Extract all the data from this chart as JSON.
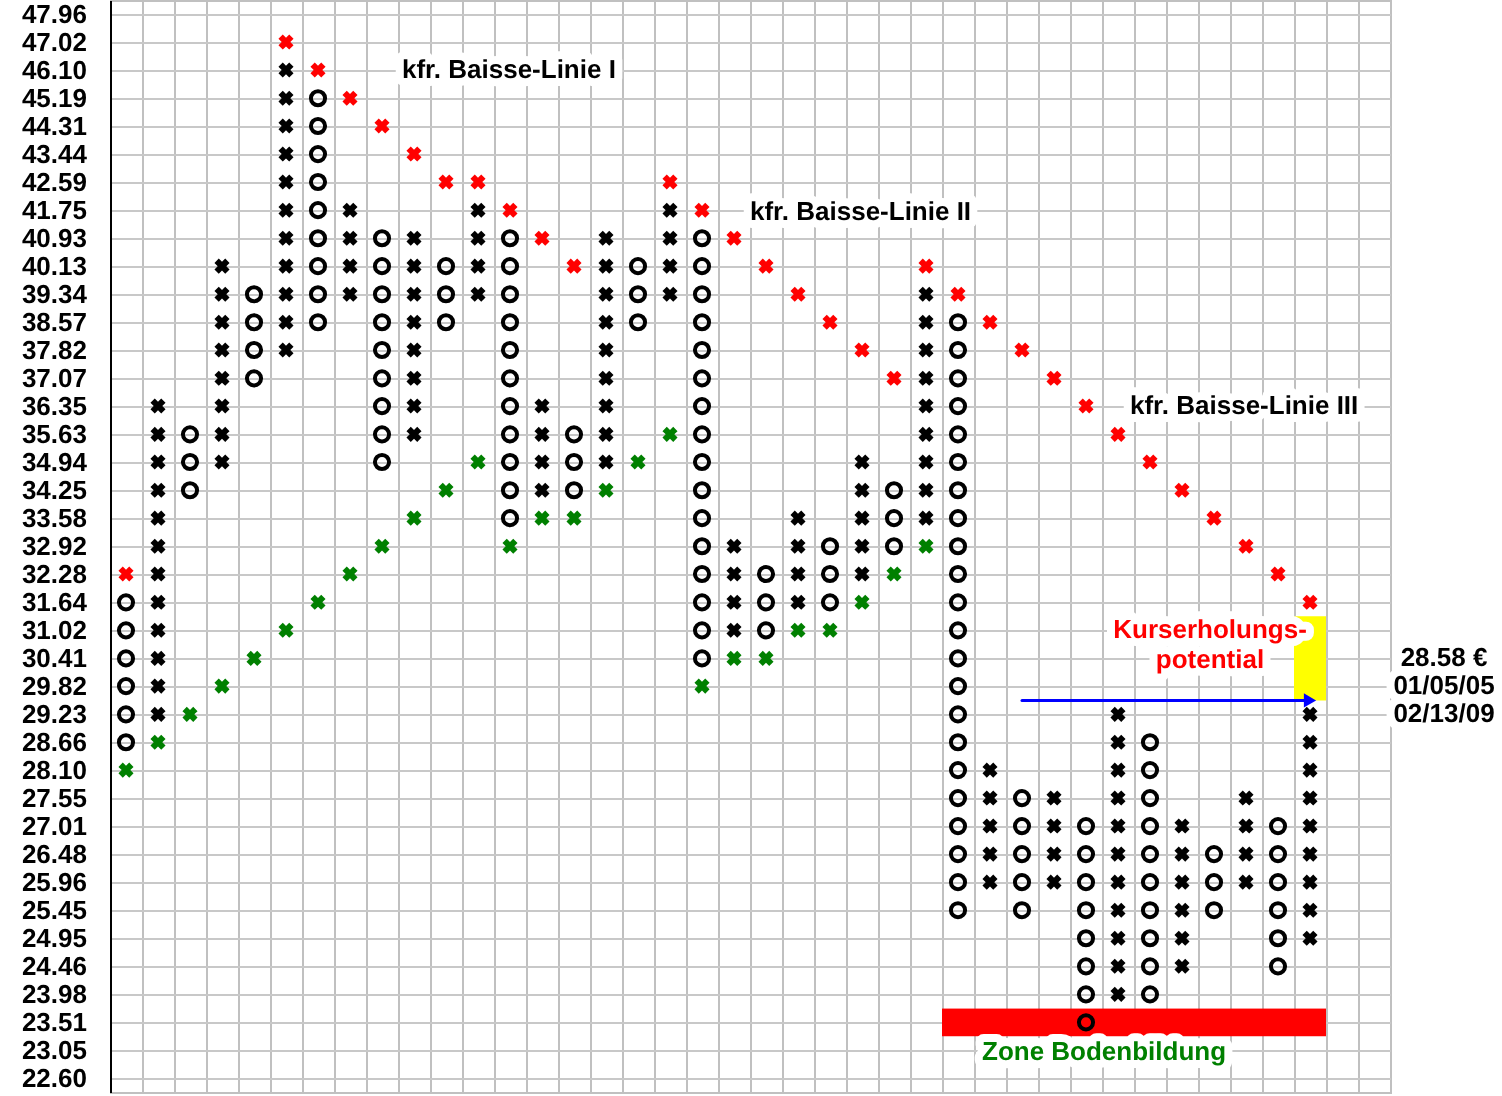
{
  "chart_data": {
    "type": "scatter",
    "categories": [
      null,
      null,
      null,
      null,
      null,
      null,
      null,
      null,
      null,
      null,
      null,
      null,
      null,
      null,
      null,
      null,
      null,
      null,
      null,
      null,
      null,
      null,
      null,
      null,
      null,
      null,
      null,
      null,
      null,
      null,
      null,
      null,
      null,
      null,
      null,
      null,
      null,
      null,
      null,
      null
    ],
    "ylim": [
      22.38,
      48.44
    ],
    "log": true,
    "grid": true,
    "tick_labels": "y",
    "yticks": [
      {
        "value": 22.6,
        "label": "22.60"
      },
      23.05,
      23.51,
      23.98,
      24.46,
      24.95,
      25.45,
      25.96,
      26.48,
      27.01,
      27.55,
      {
        "value": 28.1,
        "label": "28.10"
      },
      28.66,
      29.23,
      29.82,
      30.41,
      31.02,
      31.64,
      32.28,
      32.92,
      33.58,
      34.25,
      34.94,
      35.63,
      36.35,
      37.07,
      37.82,
      38.57,
      39.34,
      40.13,
      40.93,
      41.75,
      42.59,
      43.44,
      44.31,
      45.19,
      {
        "value": 46.1,
        "label": "46.10"
      },
      47.02,
      47.96
    ],
    "annotations": [
      "kfr. Baisse-Linie I",
      "kfr. Baisse-Linie II",
      "kfr. Baisse-Linie III",
      "Kurserholungs-\npotential",
      "28.58 €",
      "01/05/05",
      "02/13/09",
      "Zone Bodenbildung"
    ],
    "series": [
      {
        "type": "bar",
        "color": "#ffff00",
        "base": [
          null,
          null,
          null,
          null,
          null,
          null,
          null,
          null,
          null,
          null,
          null,
          null,
          null,
          null,
          null,
          null,
          null,
          null,
          null,
          null,
          null,
          null,
          null,
          null,
          null,
          null,
          null,
          null,
          null,
          null,
          null,
          null,
          null,
          null,
          null,
          null,
          null,
          29.52,
          null,
          null
        ],
        "values": [
          null,
          null,
          null,
          null,
          null,
          null,
          null,
          null,
          null,
          null,
          null,
          null,
          null,
          null,
          null,
          null,
          null,
          null,
          null,
          null,
          null,
          null,
          null,
          null,
          null,
          null,
          null,
          null,
          null,
          null,
          null,
          null,
          null,
          null,
          null,
          null,
          null,
          1.81,
          null,
          null
        ]
      },
      {
        "type": "bar",
        "color": "#ff0000",
        "base": [
          null,
          null,
          null,
          null,
          null,
          null,
          null,
          null,
          null,
          null,
          null,
          null,
          null,
          null,
          null,
          null,
          null,
          null,
          null,
          null,
          null,
          null,
          null,
          null,
          null,
          null,
          23.28,
          23.28,
          23.28,
          23.28,
          23.28,
          23.28,
          23.28,
          23.28,
          23.28,
          23.28,
          23.28,
          23.28,
          null,
          null
        ],
        "values": [
          null,
          null,
          null,
          null,
          null,
          null,
          null,
          null,
          null,
          null,
          null,
          null,
          null,
          null,
          null,
          null,
          null,
          null,
          null,
          null,
          null,
          null,
          null,
          null,
          null,
          null,
          0.46,
          0.46,
          0.46,
          0.46,
          0.46,
          0.46,
          0.46,
          0.46,
          0.46,
          0.46,
          0.46,
          0.46,
          null,
          null
        ]
      },
      {
        "type": "line",
        "color": "#0000ff",
        "values": [
          null,
          null,
          null,
          null,
          null,
          null,
          null,
          null,
          null,
          null,
          null,
          null,
          null,
          null,
          null,
          null,
          null,
          null,
          null,
          null,
          null,
          null,
          null,
          null,
          null,
          null,
          null,
          null,
          29.52,
          29.52,
          29.52,
          29.52,
          29.52,
          29.52,
          29.52,
          29.52,
          29.52,
          29.52,
          null,
          null
        ]
      },
      {
        "color": "#000000",
        "marker": "cross",
        "values": [
          null,
          29.23,
          null,
          34.94,
          null,
          37.82,
          null,
          39.34,
          null,
          35.63,
          null,
          39.34,
          null,
          34.25,
          null,
          34.94,
          null,
          39.34,
          null,
          31.02,
          null,
          31.64,
          null,
          32.28,
          null,
          33.58,
          null,
          25.96,
          null,
          25.96,
          null,
          23.98,
          null,
          24.46,
          null,
          25.96,
          null,
          24.95,
          null,
          null
        ]
      },
      {
        "color": "#000000",
        "marker": "cross",
        "values": [
          null,
          29.82,
          null,
          35.63,
          null,
          38.57,
          null,
          40.13,
          null,
          36.35,
          null,
          40.13,
          null,
          34.94,
          null,
          35.63,
          null,
          40.13,
          null,
          31.64,
          null,
          32.28,
          null,
          32.92,
          null,
          34.25,
          null,
          26.48,
          null,
          26.48,
          null,
          24.46,
          null,
          24.95,
          null,
          26.48,
          null,
          25.45,
          null,
          null
        ]
      },
      {
        "color": "#000000",
        "marker": "cross",
        "values": [
          null,
          30.41,
          null,
          36.35,
          null,
          39.34,
          null,
          40.93,
          null,
          37.07,
          null,
          40.93,
          null,
          35.63,
          null,
          36.35,
          null,
          40.93,
          null,
          32.28,
          null,
          32.92,
          null,
          33.58,
          null,
          34.94,
          null,
          27.01,
          null,
          27.01,
          null,
          24.95,
          null,
          25.45,
          null,
          27.01,
          null,
          25.96,
          null,
          null
        ]
      },
      {
        "color": "#000000",
        "marker": "cross",
        "values": [
          null,
          31.02,
          null,
          37.07,
          null,
          40.13,
          null,
          41.75,
          null,
          37.82,
          null,
          41.75,
          null,
          36.35,
          null,
          37.07,
          null,
          41.75,
          null,
          32.92,
          null,
          33.58,
          null,
          34.25,
          null,
          35.63,
          null,
          27.55,
          null,
          27.55,
          null,
          25.45,
          null,
          25.96,
          null,
          27.55,
          null,
          26.48,
          null,
          null
        ]
      },
      {
        "color": "#000000",
        "marker": "cross",
        "values": [
          null,
          31.64,
          null,
          37.82,
          null,
          40.93,
          null,
          null,
          null,
          38.57,
          null,
          null,
          null,
          null,
          null,
          37.82,
          null,
          null,
          null,
          null,
          null,
          null,
          null,
          34.94,
          null,
          36.35,
          null,
          28.1,
          null,
          null,
          null,
          25.96,
          null,
          26.48,
          null,
          null,
          null,
          27.01,
          null,
          null
        ]
      },
      {
        "color": "#000000",
        "marker": "cross",
        "values": [
          null,
          32.28,
          null,
          38.57,
          null,
          41.75,
          null,
          null,
          null,
          39.34,
          null,
          null,
          null,
          null,
          null,
          38.57,
          null,
          null,
          null,
          null,
          null,
          null,
          null,
          null,
          null,
          37.07,
          null,
          null,
          null,
          null,
          null,
          26.48,
          null,
          27.01,
          null,
          null,
          null,
          27.55,
          null,
          null
        ]
      },
      {
        "color": "#000000",
        "marker": "cross",
        "values": [
          null,
          32.92,
          null,
          39.34,
          null,
          42.59,
          null,
          null,
          null,
          40.13,
          null,
          null,
          null,
          null,
          null,
          39.34,
          null,
          null,
          null,
          null,
          null,
          null,
          null,
          null,
          null,
          37.82,
          null,
          null,
          null,
          null,
          null,
          27.01,
          null,
          null,
          null,
          null,
          null,
          28.1,
          null,
          null
        ]
      },
      {
        "color": "#000000",
        "marker": "cross",
        "values": [
          null,
          33.58,
          null,
          40.13,
          null,
          43.44,
          null,
          null,
          null,
          40.93,
          null,
          null,
          null,
          null,
          null,
          40.13,
          null,
          null,
          null,
          null,
          null,
          null,
          null,
          null,
          null,
          38.57,
          null,
          null,
          null,
          null,
          null,
          27.55,
          null,
          null,
          null,
          null,
          null,
          28.66,
          null,
          null
        ]
      },
      {
        "color": "#000000",
        "marker": "cross",
        "values": [
          null,
          34.25,
          null,
          null,
          null,
          44.31,
          null,
          null,
          null,
          null,
          null,
          null,
          null,
          null,
          null,
          40.93,
          null,
          null,
          null,
          null,
          null,
          null,
          null,
          null,
          null,
          39.34,
          null,
          null,
          null,
          null,
          null,
          28.1,
          null,
          null,
          null,
          null,
          null,
          29.23,
          null,
          null
        ]
      },
      {
        "color": "#000000",
        "marker": "cross",
        "values": [
          null,
          34.94,
          null,
          null,
          null,
          45.19,
          null,
          null,
          null,
          null,
          null,
          null,
          null,
          null,
          null,
          null,
          null,
          null,
          null,
          null,
          null,
          null,
          null,
          null,
          null,
          null,
          null,
          null,
          null,
          null,
          null,
          28.66,
          null,
          null,
          null,
          null,
          null,
          null,
          null,
          null
        ]
      },
      {
        "color": "#000000",
        "marker": "cross",
        "values": [
          null,
          35.63,
          null,
          null,
          null,
          46.1,
          null,
          null,
          null,
          null,
          null,
          null,
          null,
          null,
          null,
          null,
          null,
          null,
          null,
          null,
          null,
          null,
          null,
          null,
          null,
          null,
          null,
          null,
          null,
          null,
          null,
          29.23,
          null,
          null,
          null,
          null,
          null,
          null,
          null,
          null
        ]
      },
      {
        "color": "#000000",
        "marker": "cross",
        "values": [
          null,
          36.35,
          null,
          null,
          null,
          null,
          null,
          null,
          null,
          null,
          null,
          null,
          null,
          null,
          null,
          null,
          null,
          null,
          null,
          null,
          null,
          null,
          null,
          null,
          null,
          null,
          null,
          null,
          null,
          null,
          null,
          null,
          null,
          null,
          null,
          null,
          null,
          null,
          null,
          null
        ]
      },
      {
        "color": "#000000",
        "marker": "circle",
        "values": [
          28.66,
          null,
          34.25,
          null,
          37.07,
          null,
          38.57,
          null,
          34.94,
          null,
          38.57,
          null,
          33.58,
          null,
          34.25,
          null,
          38.57,
          null,
          30.41,
          null,
          31.02,
          null,
          31.64,
          null,
          32.92,
          null,
          25.45,
          null,
          25.45,
          null,
          23.51,
          null,
          23.98,
          null,
          25.45,
          null,
          24.46,
          null,
          null,
          null
        ]
      },
      {
        "color": "#000000",
        "marker": "circle",
        "values": [
          29.23,
          null,
          34.94,
          null,
          37.82,
          null,
          39.34,
          null,
          35.63,
          null,
          39.34,
          null,
          34.25,
          null,
          34.94,
          null,
          39.34,
          null,
          31.02,
          null,
          31.64,
          null,
          32.28,
          null,
          33.58,
          null,
          25.96,
          null,
          25.96,
          null,
          23.98,
          null,
          24.46,
          null,
          25.96,
          null,
          24.95,
          null,
          null,
          null
        ]
      },
      {
        "color": "#000000",
        "marker": "circle",
        "values": [
          29.82,
          null,
          35.63,
          null,
          38.57,
          null,
          40.13,
          null,
          36.35,
          null,
          40.13,
          null,
          34.94,
          null,
          35.63,
          null,
          40.13,
          null,
          31.64,
          null,
          32.28,
          null,
          32.92,
          null,
          34.25,
          null,
          26.48,
          null,
          26.48,
          null,
          24.46,
          null,
          24.95,
          null,
          26.48,
          null,
          25.45,
          null,
          null,
          null
        ]
      },
      {
        "color": "#000000",
        "marker": "circle",
        "values": [
          30.41,
          null,
          null,
          null,
          39.34,
          null,
          40.93,
          null,
          37.07,
          null,
          null,
          null,
          35.63,
          null,
          null,
          null,
          null,
          null,
          32.28,
          null,
          null,
          null,
          null,
          null,
          null,
          null,
          27.01,
          null,
          27.01,
          null,
          24.95,
          null,
          25.45,
          null,
          null,
          null,
          25.96,
          null,
          null,
          null
        ]
      },
      {
        "color": "#000000",
        "marker": "circle",
        "values": [
          31.02,
          null,
          null,
          null,
          null,
          null,
          41.75,
          null,
          37.82,
          null,
          null,
          null,
          36.35,
          null,
          null,
          null,
          null,
          null,
          32.92,
          null,
          null,
          null,
          null,
          null,
          null,
          null,
          27.55,
          null,
          27.55,
          null,
          25.45,
          null,
          25.96,
          null,
          null,
          null,
          26.48,
          null,
          null,
          null
        ]
      },
      {
        "color": "#000000",
        "marker": "circle",
        "values": [
          31.64,
          null,
          null,
          null,
          null,
          null,
          42.59,
          null,
          38.57,
          null,
          null,
          null,
          37.07,
          null,
          null,
          null,
          null,
          null,
          33.58,
          null,
          null,
          null,
          null,
          null,
          null,
          null,
          28.1,
          null,
          null,
          null,
          25.96,
          null,
          26.48,
          null,
          null,
          null,
          27.01,
          null,
          null,
          null
        ]
      },
      {
        "color": "#000000",
        "marker": "circle",
        "values": [
          null,
          null,
          null,
          null,
          null,
          null,
          43.44,
          null,
          39.34,
          null,
          null,
          null,
          37.82,
          null,
          null,
          null,
          null,
          null,
          34.25,
          null,
          null,
          null,
          null,
          null,
          null,
          null,
          28.66,
          null,
          null,
          null,
          26.48,
          null,
          27.01,
          null,
          null,
          null,
          null,
          null,
          null,
          null
        ]
      },
      {
        "color": "#000000",
        "marker": "circle",
        "values": [
          null,
          null,
          null,
          null,
          null,
          null,
          44.31,
          null,
          40.13,
          null,
          null,
          null,
          38.57,
          null,
          null,
          null,
          null,
          null,
          34.94,
          null,
          null,
          null,
          null,
          null,
          null,
          null,
          29.23,
          null,
          null,
          null,
          27.01,
          null,
          27.55,
          null,
          null,
          null,
          null,
          null,
          null,
          null
        ]
      },
      {
        "color": "#000000",
        "marker": "circle",
        "values": [
          null,
          null,
          null,
          null,
          null,
          null,
          45.19,
          null,
          40.93,
          null,
          null,
          null,
          39.34,
          null,
          null,
          null,
          null,
          null,
          35.63,
          null,
          null,
          null,
          null,
          null,
          null,
          null,
          29.82,
          null,
          null,
          null,
          null,
          null,
          28.1,
          null,
          null,
          null,
          null,
          null,
          null,
          null
        ]
      },
      {
        "color": "#000000",
        "marker": "circle",
        "values": [
          null,
          null,
          null,
          null,
          null,
          null,
          null,
          null,
          null,
          null,
          null,
          null,
          40.13,
          null,
          null,
          null,
          null,
          null,
          36.35,
          null,
          null,
          null,
          null,
          null,
          null,
          null,
          30.41,
          null,
          null,
          null,
          null,
          null,
          28.66,
          null,
          null,
          null,
          null,
          null,
          null,
          null
        ]
      },
      {
        "color": "#000000",
        "marker": "circle",
        "values": [
          null,
          null,
          null,
          null,
          null,
          null,
          null,
          null,
          null,
          null,
          null,
          null,
          40.93,
          null,
          null,
          null,
          null,
          null,
          37.07,
          null,
          null,
          null,
          null,
          null,
          null,
          null,
          31.02,
          null,
          null,
          null,
          null,
          null,
          null,
          null,
          null,
          null,
          null,
          null,
          null,
          null
        ]
      },
      {
        "color": "#000000",
        "marker": "circle",
        "values": [
          null,
          null,
          null,
          null,
          null,
          null,
          null,
          null,
          null,
          null,
          null,
          null,
          null,
          null,
          null,
          null,
          null,
          null,
          37.82,
          null,
          null,
          null,
          null,
          null,
          null,
          null,
          31.64,
          null,
          null,
          null,
          null,
          null,
          null,
          null,
          null,
          null,
          null,
          null,
          null,
          null
        ]
      },
      {
        "color": "#000000",
        "marker": "circle",
        "values": [
          null,
          null,
          null,
          null,
          null,
          null,
          null,
          null,
          null,
          null,
          null,
          null,
          null,
          null,
          null,
          null,
          null,
          null,
          38.57,
          null,
          null,
          null,
          null,
          null,
          null,
          null,
          32.28,
          null,
          null,
          null,
          null,
          null,
          null,
          null,
          null,
          null,
          null,
          null,
          null,
          null
        ]
      },
      {
        "color": "#000000",
        "marker": "circle",
        "values": [
          null,
          null,
          null,
          null,
          null,
          null,
          null,
          null,
          null,
          null,
          null,
          null,
          null,
          null,
          null,
          null,
          null,
          null,
          39.34,
          null,
          null,
          null,
          null,
          null,
          null,
          null,
          32.92,
          null,
          null,
          null,
          null,
          null,
          null,
          null,
          null,
          null,
          null,
          null,
          null,
          null
        ]
      },
      {
        "color": "#000000",
        "marker": "circle",
        "values": [
          null,
          null,
          null,
          null,
          null,
          null,
          null,
          null,
          null,
          null,
          null,
          null,
          null,
          null,
          null,
          null,
          null,
          null,
          40.13,
          null,
          null,
          null,
          null,
          null,
          null,
          null,
          33.58,
          null,
          null,
          null,
          null,
          null,
          null,
          null,
          null,
          null,
          null,
          null,
          null,
          null
        ]
      },
      {
        "color": "#000000",
        "marker": "circle",
        "values": [
          null,
          null,
          null,
          null,
          null,
          null,
          null,
          null,
          null,
          null,
          null,
          null,
          null,
          null,
          null,
          null,
          null,
          null,
          40.93,
          null,
          null,
          null,
          null,
          null,
          null,
          null,
          34.25,
          null,
          null,
          null,
          null,
          null,
          null,
          null,
          null,
          null,
          null,
          null,
          null,
          null
        ]
      },
      {
        "color": "#000000",
        "marker": "circle",
        "values": [
          null,
          null,
          null,
          null,
          null,
          null,
          null,
          null,
          null,
          null,
          null,
          null,
          null,
          null,
          null,
          null,
          null,
          null,
          null,
          null,
          null,
          null,
          null,
          null,
          null,
          null,
          34.94,
          null,
          null,
          null,
          null,
          null,
          null,
          null,
          null,
          null,
          null,
          null,
          null,
          null
        ]
      },
      {
        "color": "#000000",
        "marker": "circle",
        "values": [
          null,
          null,
          null,
          null,
          null,
          null,
          null,
          null,
          null,
          null,
          null,
          null,
          null,
          null,
          null,
          null,
          null,
          null,
          null,
          null,
          null,
          null,
          null,
          null,
          null,
          null,
          35.63,
          null,
          null,
          null,
          null,
          null,
          null,
          null,
          null,
          null,
          null,
          null,
          null,
          null
        ]
      },
      {
        "color": "#000000",
        "marker": "circle",
        "values": [
          null,
          null,
          null,
          null,
          null,
          null,
          null,
          null,
          null,
          null,
          null,
          null,
          null,
          null,
          null,
          null,
          null,
          null,
          null,
          null,
          null,
          null,
          null,
          null,
          null,
          null,
          36.35,
          null,
          null,
          null,
          null,
          null,
          null,
          null,
          null,
          null,
          null,
          null,
          null,
          null
        ]
      },
      {
        "color": "#000000",
        "marker": "circle",
        "values": [
          null,
          null,
          null,
          null,
          null,
          null,
          null,
          null,
          null,
          null,
          null,
          null,
          null,
          null,
          null,
          null,
          null,
          null,
          null,
          null,
          null,
          null,
          null,
          null,
          null,
          null,
          37.07,
          null,
          null,
          null,
          null,
          null,
          null,
          null,
          null,
          null,
          null,
          null,
          null,
          null
        ]
      },
      {
        "color": "#000000",
        "marker": "circle",
        "values": [
          null,
          null,
          null,
          null,
          null,
          null,
          null,
          null,
          null,
          null,
          null,
          null,
          null,
          null,
          null,
          null,
          null,
          null,
          null,
          null,
          null,
          null,
          null,
          null,
          null,
          null,
          37.82,
          null,
          null,
          null,
          null,
          null,
          null,
          null,
          null,
          null,
          null,
          null,
          null,
          null
        ]
      },
      {
        "color": "#000000",
        "marker": "circle",
        "values": [
          null,
          null,
          null,
          null,
          null,
          null,
          null,
          null,
          null,
          null,
          null,
          null,
          null,
          null,
          null,
          null,
          null,
          null,
          null,
          null,
          null,
          null,
          null,
          null,
          null,
          null,
          38.57,
          null,
          null,
          null,
          null,
          null,
          null,
          null,
          null,
          null,
          null,
          null,
          null,
          null
        ]
      },
      {
        "color": "#ff0000",
        "marker": "cross",
        "values": [
          32.28,
          null,
          null,
          null,
          null,
          47.02,
          46.1,
          45.19,
          44.31,
          43.44,
          42.59,
          42.59,
          41.75,
          40.93,
          40.13,
          null,
          null,
          42.59,
          41.75,
          40.93,
          40.13,
          39.34,
          38.57,
          37.82,
          37.07,
          40.13,
          39.34,
          38.57,
          37.82,
          37.07,
          36.35,
          35.63,
          34.94,
          34.25,
          33.58,
          32.92,
          32.28,
          31.64,
          null,
          null
        ]
      },
      {
        "color": "#008000",
        "marker": "cross",
        "values": [
          28.1,
          28.66,
          29.23,
          29.82,
          30.41,
          31.02,
          31.64,
          32.28,
          32.92,
          33.58,
          34.25,
          34.94,
          32.92,
          33.58,
          33.58,
          34.25,
          34.94,
          35.63,
          29.82,
          30.41,
          30.41,
          31.02,
          31.02,
          31.64,
          32.28,
          32.92,
          null,
          null,
          null,
          null,
          null,
          null,
          null,
          null,
          null,
          null,
          null,
          null,
          null,
          null
        ]
      }
    ]
  }
}
